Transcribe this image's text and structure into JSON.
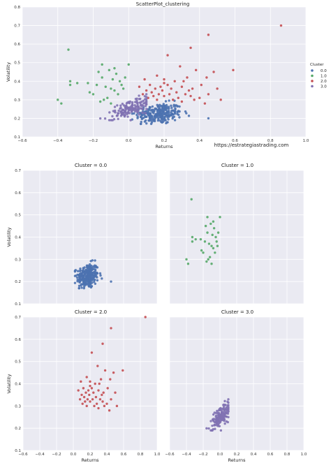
{
  "figure": {
    "watermark": "https://estrategiastrading.com"
  },
  "chart_data": [
    {
      "type": "scatter",
      "title": "ScatterPlot_clustering",
      "xlabel": "Returns",
      "ylabel": "Volatility",
      "xlim": [
        -0.6,
        1.0
      ],
      "ylim": [
        0.1,
        0.8
      ],
      "xticks": [
        "−0.6",
        "−0.4",
        "−0.2",
        "0.0",
        "0.2",
        "0.4",
        "0.6",
        "0.8",
        "1.0"
      ],
      "yticks": [
        "0.1",
        "0.2",
        "0.3",
        "0.4",
        "0.5",
        "0.6",
        "0.7",
        "0.8"
      ],
      "grid": true,
      "legend": {
        "title": "Cluster",
        "placement": "right",
        "entries": [
          "0.0",
          "1.0",
          "2.0",
          "3.0"
        ]
      },
      "colors": [
        "#4c72b0",
        "#55a868",
        "#c44e52",
        "#8172b2"
      ],
      "series": [
        {
          "name": "0.0",
          "cluster_summary": {
            "x_range": [
              0.02,
              0.34
            ],
            "y_range": [
              0.17,
              0.3
            ],
            "outlier": [
              0.45,
              0.2
            ]
          }
        },
        {
          "name": "1.0",
          "points": [
            [
              -0.34,
              0.57
            ],
            [
              -0.4,
              0.3
            ],
            [
              -0.38,
              0.28
            ],
            [
              -0.33,
              0.38
            ],
            [
              -0.33,
              0.4
            ],
            [
              -0.29,
              0.39
            ],
            [
              -0.23,
              0.39
            ],
            [
              -0.22,
              0.34
            ],
            [
              -0.18,
              0.38
            ],
            [
              -0.17,
              0.45
            ],
            [
              -0.15,
              0.49
            ],
            [
              -0.15,
              0.42
            ],
            [
              -0.13,
              0.37
            ],
            [
              -0.11,
              0.46
            ],
            [
              -0.1,
              0.36
            ],
            [
              -0.09,
              0.41
            ],
            [
              -0.08,
              0.35
            ],
            [
              -0.07,
              0.44
            ],
            [
              -0.06,
              0.33
            ],
            [
              -0.05,
              0.4
            ],
            [
              -0.04,
              0.38
            ],
            [
              -0.03,
              0.36
            ],
            [
              0.0,
              0.49
            ],
            [
              -0.14,
              0.3
            ],
            [
              -0.12,
              0.31
            ],
            [
              -0.16,
              0.29
            ],
            [
              -0.1,
              0.28
            ],
            [
              -0.2,
              0.33
            ],
            [
              -0.02,
              0.42
            ],
            [
              -0.08,
              0.47
            ]
          ]
        },
        {
          "name": "2.0",
          "points": [
            [
              0.86,
              0.7
            ],
            [
              0.45,
              0.65
            ],
            [
              0.59,
              0.46
            ],
            [
              0.35,
              0.58
            ],
            [
              0.22,
              0.54
            ],
            [
              0.29,
              0.48
            ],
            [
              0.38,
              0.46
            ],
            [
              0.48,
              0.45
            ],
            [
              0.44,
              0.42
            ],
            [
              0.26,
              0.4
            ],
            [
              0.31,
              0.4
            ],
            [
              0.2,
              0.41
            ],
            [
              0.16,
              0.43
            ],
            [
              0.12,
              0.38
            ],
            [
              0.15,
              0.36
            ],
            [
              0.18,
              0.37
            ],
            [
              0.24,
              0.36
            ],
            [
              0.3,
              0.37
            ],
            [
              0.34,
              0.35
            ],
            [
              0.41,
              0.38
            ],
            [
              0.45,
              0.33
            ],
            [
              0.13,
              0.34
            ],
            [
              0.17,
              0.33
            ],
            [
              0.2,
              0.32
            ],
            [
              0.23,
              0.33
            ],
            [
              0.27,
              0.34
            ],
            [
              0.35,
              0.32
            ],
            [
              0.4,
              0.31
            ],
            [
              0.1,
              0.35
            ],
            [
              0.06,
              0.37
            ],
            [
              0.08,
              0.33
            ],
            [
              0.14,
              0.32
            ],
            [
              0.19,
              0.35
            ],
            [
              0.28,
              0.31
            ],
            [
              0.32,
              0.33
            ],
            [
              0.37,
              0.3
            ],
            [
              0.43,
              0.28
            ],
            [
              0.22,
              0.38
            ],
            [
              0.25,
              0.3
            ],
            [
              0.11,
              0.31
            ],
            [
              0.5,
              0.36
            ],
            [
              0.52,
              0.3
            ],
            [
              0.09,
              0.41
            ],
            [
              0.33,
              0.42
            ],
            [
              0.2,
              0.39
            ],
            [
              0.16,
              0.3
            ],
            [
              0.36,
              0.36
            ],
            [
              0.3,
              0.29
            ]
          ]
        },
        {
          "name": "3.0",
          "cluster_summary": {
            "x_range": [
              -0.2,
              0.1
            ],
            "y_range": [
              0.19,
              0.33
            ]
          }
        }
      ]
    },
    {
      "type": "scatter",
      "title": "Cluster = 0.0",
      "xlabel": "",
      "ylabel": "Volatility",
      "xlim": [
        -0.6,
        1.0
      ],
      "ylim": [
        0.1,
        0.7
      ],
      "yticks": [
        "0.1",
        "0.2",
        "0.3",
        "0.4",
        "0.5",
        "0.6",
        "0.7"
      ],
      "series": [
        {
          "name": "0.0",
          "cluster_summary": {
            "x_range": [
              0.02,
              0.34
            ],
            "y_range": [
              0.17,
              0.3
            ],
            "outlier": [
              0.45,
              0.2
            ]
          }
        }
      ]
    },
    {
      "type": "scatter",
      "title": "Cluster = 1.0",
      "xlim": [
        -0.6,
        1.0
      ],
      "ylim": [
        0.1,
        0.7
      ],
      "series": [
        {
          "name": "1.0",
          "points": [
            [
              -0.34,
              0.57
            ],
            [
              -0.4,
              0.3
            ],
            [
              -0.38,
              0.28
            ],
            [
              -0.33,
              0.38
            ],
            [
              -0.33,
              0.4
            ],
            [
              -0.29,
              0.39
            ],
            [
              -0.23,
              0.39
            ],
            [
              -0.22,
              0.34
            ],
            [
              -0.18,
              0.38
            ],
            [
              -0.17,
              0.45
            ],
            [
              -0.15,
              0.49
            ],
            [
              -0.15,
              0.42
            ],
            [
              -0.13,
              0.37
            ],
            [
              -0.11,
              0.46
            ],
            [
              -0.1,
              0.36
            ],
            [
              -0.09,
              0.41
            ],
            [
              -0.08,
              0.35
            ],
            [
              -0.07,
              0.44
            ],
            [
              -0.06,
              0.33
            ],
            [
              -0.05,
              0.4
            ],
            [
              -0.04,
              0.38
            ],
            [
              -0.03,
              0.36
            ],
            [
              0.0,
              0.49
            ],
            [
              -0.14,
              0.3
            ],
            [
              -0.12,
              0.31
            ],
            [
              -0.16,
              0.29
            ],
            [
              -0.1,
              0.28
            ],
            [
              -0.2,
              0.33
            ],
            [
              -0.02,
              0.42
            ],
            [
              -0.08,
              0.47
            ]
          ]
        }
      ]
    },
    {
      "type": "scatter",
      "title": "Cluster = 2.0",
      "xlabel": "Returns",
      "ylabel": "Volatility",
      "xlim": [
        -0.6,
        1.0
      ],
      "ylim": [
        0.1,
        0.7
      ],
      "xticks": [
        "−0.6",
        "−0.4",
        "−0.2",
        "0.0",
        "0.2",
        "0.4",
        "0.6",
        "0.8",
        "1.0"
      ],
      "yticks": [
        "0.1",
        "0.2",
        "0.3",
        "0.4",
        "0.5",
        "0.6",
        "0.7"
      ],
      "series": [
        {
          "name": "2.0",
          "points": "same as cluster 2.0 above"
        }
      ]
    },
    {
      "type": "scatter",
      "title": "Cluster = 3.0",
      "xlabel": "Returns",
      "xlim": [
        -0.6,
        1.0
      ],
      "ylim": [
        0.1,
        0.7
      ],
      "xticks": [
        "−0.6",
        "−0.4",
        "−0.2",
        "0.0",
        "0.2",
        "0.4",
        "0.6",
        "0.8",
        "1.0"
      ],
      "series": [
        {
          "name": "3.0",
          "cluster_summary": {
            "x_range": [
              -0.2,
              0.1
            ],
            "y_range": [
              0.19,
              0.33
            ]
          }
        }
      ]
    }
  ]
}
